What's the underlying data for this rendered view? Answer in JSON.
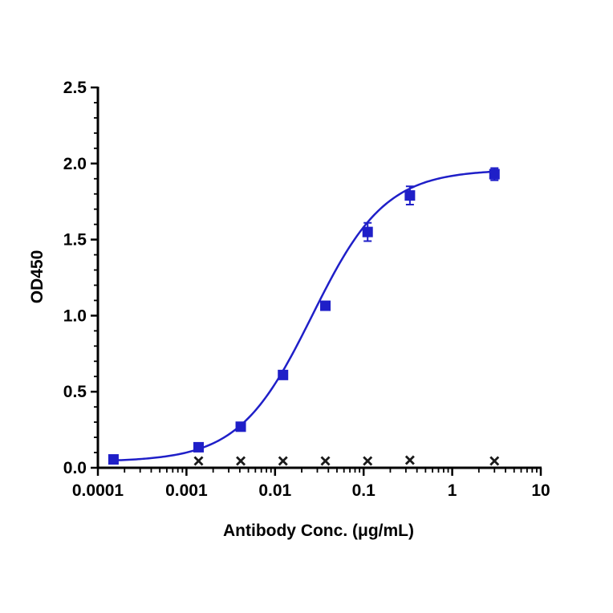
{
  "chart_data": {
    "type": "scatter",
    "title": "",
    "xlabel": "Antibody Conc. (μg/mL)",
    "ylabel": "OD450",
    "xscale": "log",
    "xlim": [
      0.0001,
      10
    ],
    "ylim": [
      0,
      2.5
    ],
    "x_ticks": [
      0.0001,
      0.001,
      0.01,
      0.1,
      1,
      10
    ],
    "x_tick_labels": [
      "0.0001",
      "0.001",
      "0.01",
      "0.1",
      "1",
      "10"
    ],
    "y_ticks": [
      0,
      0.5,
      1,
      1.5,
      2,
      2.5
    ],
    "y_tick_labels": [
      "0.0",
      "0.5",
      "1.0",
      "1.5",
      "2.0",
      "2.5"
    ],
    "grid": false,
    "legend": "none",
    "series": [
      {
        "marker": "square",
        "color": "#1f1fc8",
        "fit": "4PL sigmoidal curve",
        "x": [
          0.00015,
          0.00137,
          0.0041,
          0.0123,
          0.037,
          0.111,
          0.333,
          3.0
        ],
        "y": [
          0.055,
          0.135,
          0.27,
          0.61,
          1.065,
          1.55,
          1.79,
          1.93
        ],
        "error": [
          0.01,
          0.015,
          0.015,
          0.02,
          0.02,
          0.06,
          0.06,
          0.04
        ]
      },
      {
        "marker": "x",
        "color": "#1a1a1a",
        "x": [
          0.00137,
          0.0041,
          0.0123,
          0.037,
          0.111,
          0.333,
          3.0
        ],
        "y": [
          0.045,
          0.045,
          0.045,
          0.045,
          0.045,
          0.05,
          0.045
        ]
      }
    ]
  }
}
